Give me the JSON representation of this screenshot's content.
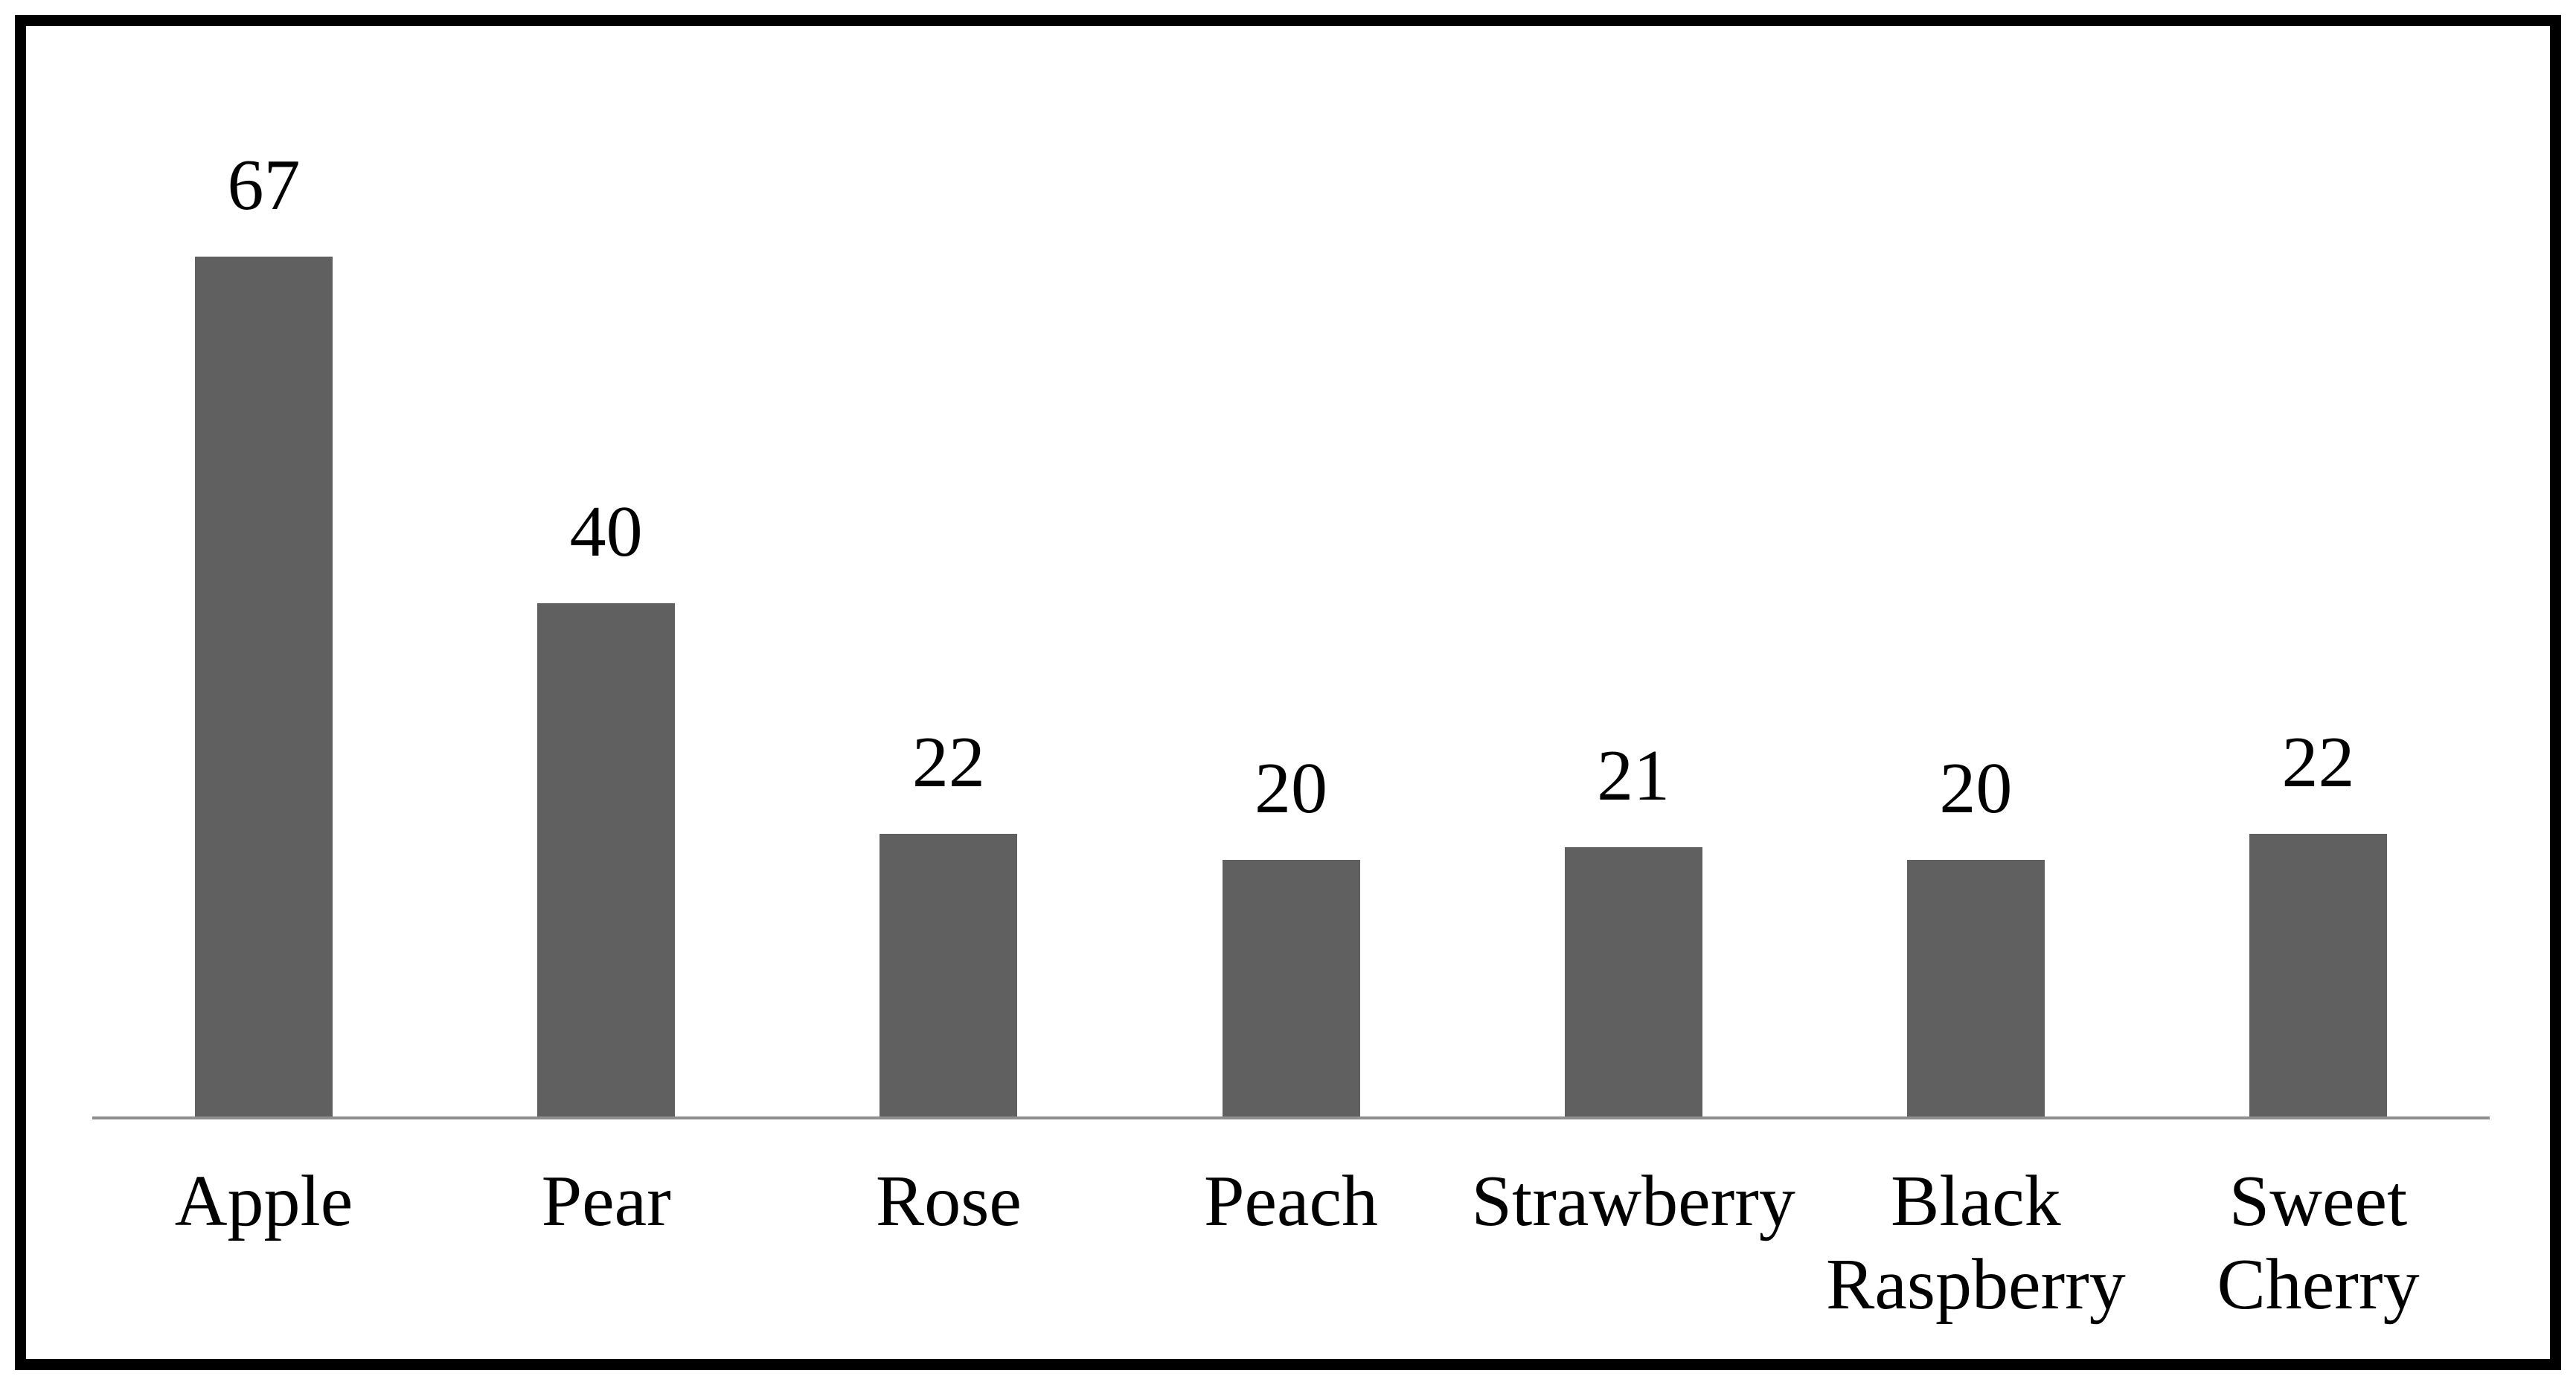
{
  "chart_data": {
    "type": "bar",
    "categories": [
      "Apple",
      "Pear",
      "Rose",
      "Peach",
      "Strawberry",
      "Black\nRaspberry",
      "Sweet\nCherry"
    ],
    "values": [
      67,
      40,
      22,
      20,
      21,
      20,
      22
    ],
    "data_labels": [
      "67",
      "40",
      "22",
      "20",
      "21",
      "20",
      "22"
    ],
    "title": "",
    "xlabel": "",
    "ylabel": "",
    "ylim": [
      0,
      67
    ],
    "grid": false,
    "legend": "none",
    "y_axis_visible": false,
    "x_axis_visible": true,
    "bar_color": "#606060",
    "axis_color": "#8e8e8e",
    "text_color": "#000000",
    "frame_color": "#000000",
    "background_color": "#ffffff"
  }
}
